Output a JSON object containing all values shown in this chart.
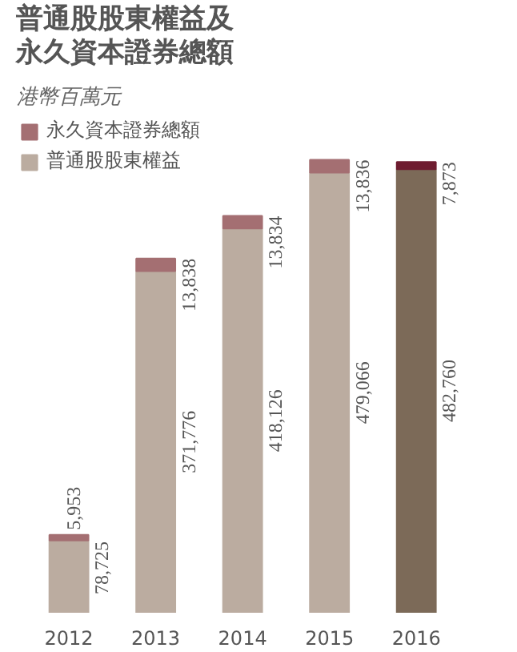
{
  "chart_data": {
    "type": "bar",
    "title": "普通股股東權益及永久資本證券總額",
    "subtitle": "港幣百萬元",
    "categories": [
      "2012",
      "2013",
      "2014",
      "2015",
      "2016"
    ],
    "stacked": true,
    "legend": "top left",
    "grid": false,
    "series": [
      {
        "name": "普通股股東權益",
        "color": "#bbaca0",
        "colors": [
          "#bbaca0",
          "#bbaca0",
          "#bbaca0",
          "#bbaca0",
          "#7c6a58"
        ],
        "values": [
          78725,
          371776,
          418126,
          479066,
          482760
        ],
        "value_labels": [
          "78,725",
          "371,776",
          "418,126",
          "479,066",
          "482,760"
        ]
      },
      {
        "name": "永久資本證券總額",
        "color": "#a46f72",
        "colors": [
          "#a46f72",
          "#a46f72",
          "#a46f72",
          "#a46f72",
          "#6e1c30"
        ],
        "values": [
          5953,
          13838,
          13834,
          13836,
          7873
        ],
        "value_labels": [
          "5,953",
          "13,838",
          "13,834",
          "13,836",
          "7,873"
        ]
      }
    ]
  }
}
